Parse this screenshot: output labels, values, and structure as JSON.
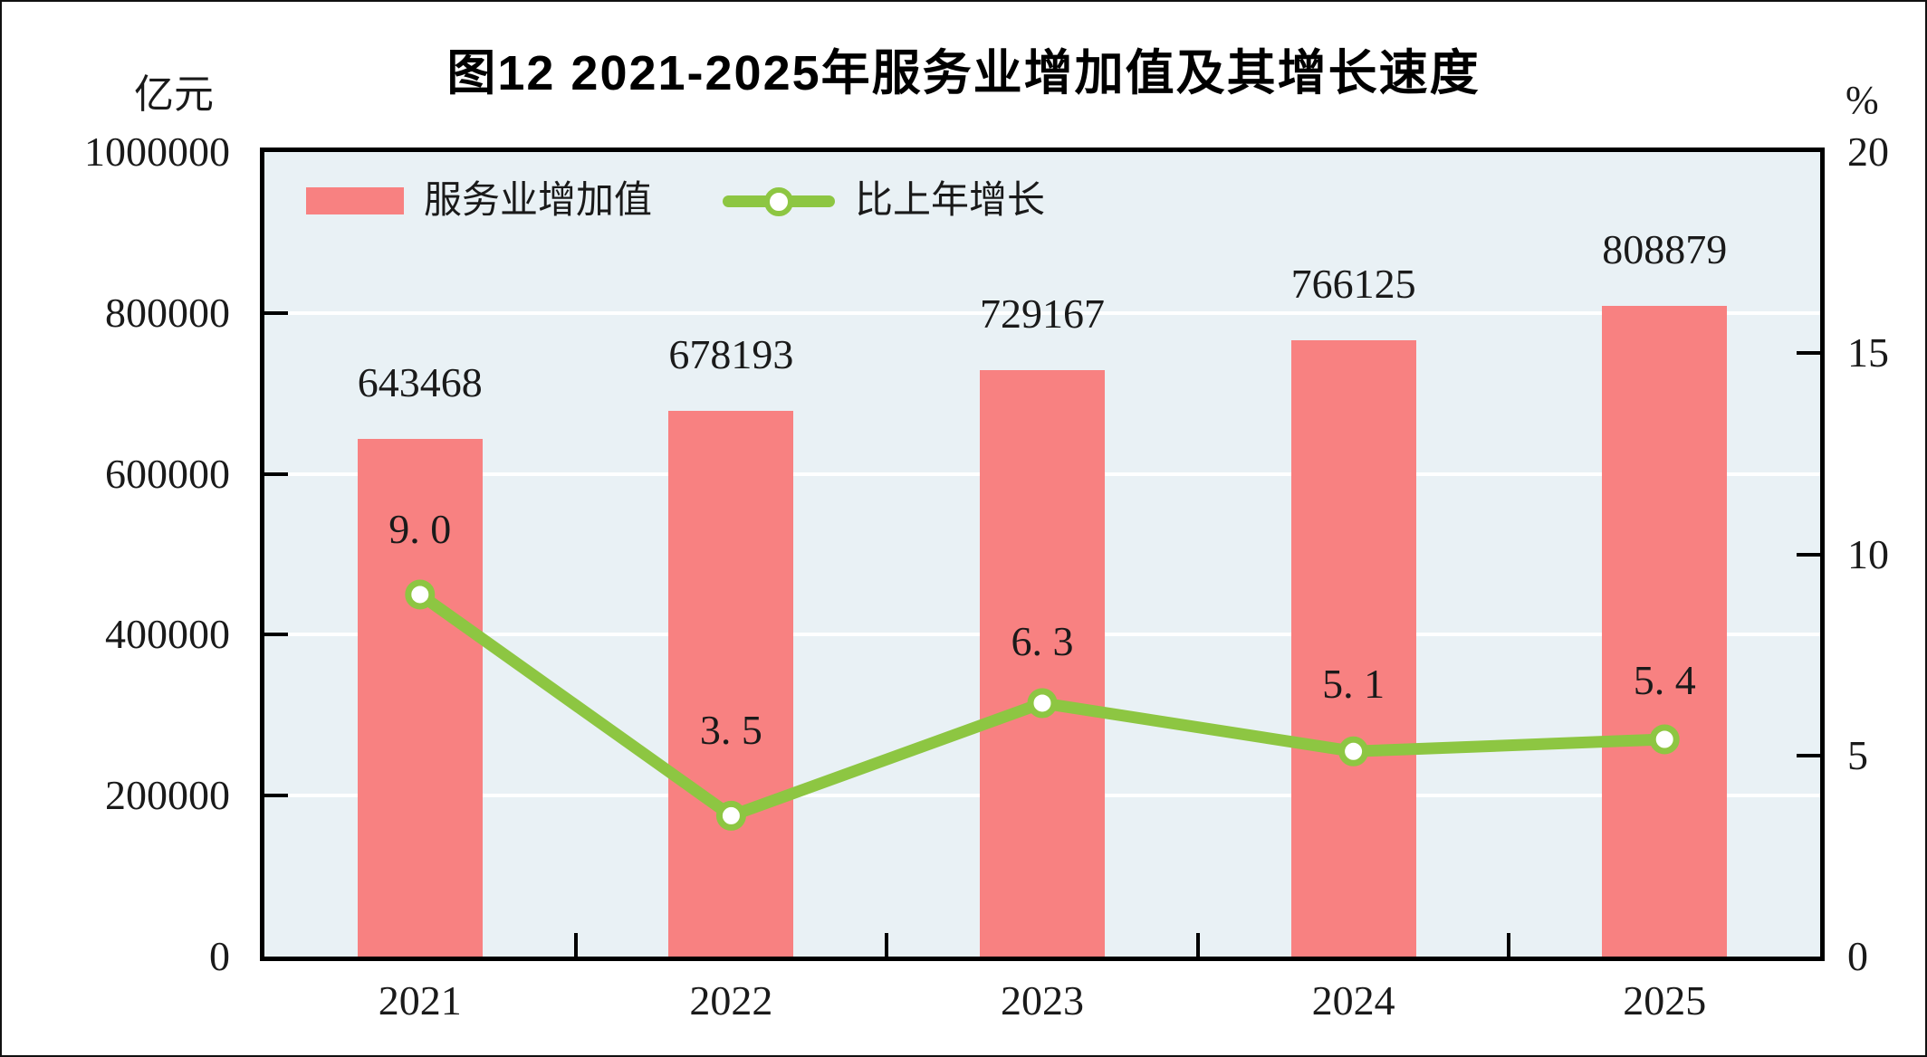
{
  "figure": {
    "title": "图12  2021-2025年服务业增加值及其增长速度",
    "left_axis_unit": "亿元",
    "right_axis_unit": "%"
  },
  "chart_data": {
    "type": "bar",
    "subtype": "bar+line combo, dual axis",
    "categories": [
      "2021",
      "2022",
      "2023",
      "2024",
      "2025"
    ],
    "series": [
      {
        "name": "服务业增加值",
        "type": "bar",
        "axis": "left",
        "color": "#F88181",
        "values": [
          643468,
          678193,
          729167,
          766125,
          808879
        ],
        "labels": [
          "643468",
          "678193",
          "729167",
          "766125",
          "808879"
        ]
      },
      {
        "name": "比上年增长",
        "type": "line",
        "axis": "right",
        "color": "#8DC642",
        "marker": "open-circle",
        "values": [
          9.0,
          3.5,
          6.3,
          5.1,
          5.4
        ],
        "labels": [
          "9. 0",
          "3. 5",
          "6. 3",
          "5. 1",
          "5. 4"
        ]
      }
    ],
    "left_axis": {
      "min": 0,
      "max": 1000000,
      "tick_labels": [
        "0",
        "200000",
        "400000",
        "600000",
        "800000",
        "1000000"
      ],
      "tick_values": [
        0,
        200000,
        400000,
        600000,
        800000,
        1000000
      ]
    },
    "right_axis": {
      "min": 0,
      "max": 20,
      "tick_labels": [
        "0",
        "5",
        "10",
        "15",
        "20"
      ],
      "tick_values": [
        0,
        5,
        10,
        15,
        20
      ]
    },
    "grid": true,
    "gridline_values_left_axis": [
      200000,
      400000,
      600000,
      800000
    ],
    "legend_position": "top-left-inside",
    "plot_bg": "#E9F1F5",
    "title": "图12  2021-2025年服务业增加值及其增长速度"
  }
}
